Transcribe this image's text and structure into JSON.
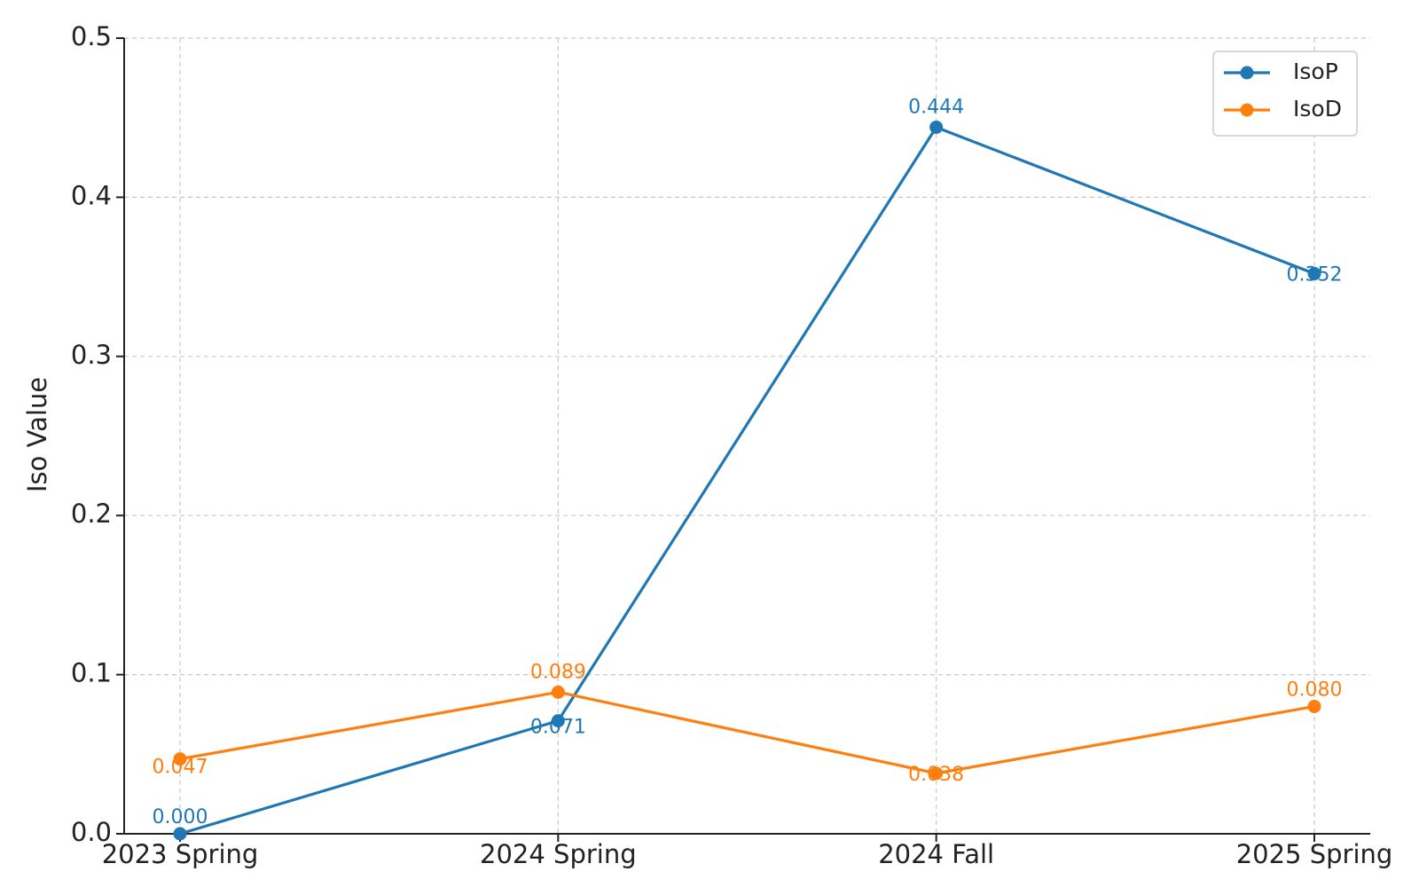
{
  "chart_data": {
    "type": "line",
    "y_label": "Iso Value",
    "categories": [
      "2023 Spring",
      "2024 Spring",
      "2024 Fall",
      "2025 Spring"
    ],
    "series": [
      {
        "name": "IsoP",
        "color": "#1f77b4",
        "values": [
          0.0,
          0.071,
          0.444,
          0.352
        ],
        "value_labels": [
          "0.000",
          "0.071",
          "0.444",
          "0.352"
        ]
      },
      {
        "name": "IsoD",
        "color": "#ff7f0e",
        "values": [
          0.047,
          0.089,
          0.038,
          0.08
        ],
        "value_labels": [
          "0.047",
          "0.089",
          "0.038",
          "0.080"
        ]
      }
    ],
    "ylim": [
      0,
      0.5
    ],
    "yticks": [
      {
        "value": 0,
        "label": "0.0"
      },
      0.1,
      0.2,
      0.3,
      0.4,
      0.5
    ],
    "grid": true,
    "legend": "upper right"
  }
}
